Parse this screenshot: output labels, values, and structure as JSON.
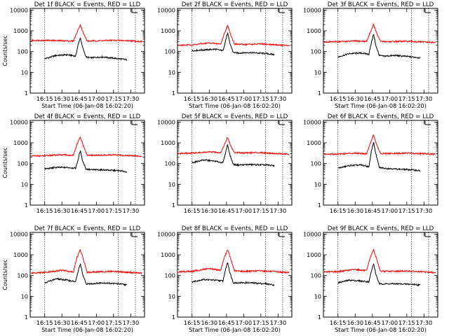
{
  "figure": {
    "colors": {
      "events": "#000000",
      "lld": "#ff0000",
      "axis": "#000000",
      "marker": "#000000"
    }
  },
  "chart_data": [
    {
      "type": "line",
      "panel": 1,
      "title": "Det 1f BLACK = Events, RED = LLD",
      "xlabel": "Start Time (06-Jan-08 16:02:20)",
      "ylabel": "Counts/sec",
      "yscale": "log",
      "ylim": [
        1,
        12000
      ],
      "xlim": [
        "16:02:20",
        "17:42"
      ],
      "x_tick_labels": [
        "16:15",
        "16:30",
        "16:45",
        "17:00",
        "17:15",
        "17:30"
      ],
      "y_tick_labels": [
        "1",
        "10",
        "100",
        "1000",
        "10000"
      ],
      "vertical_markers": [
        "16:15",
        "17:19",
        "17:34"
      ],
      "series": [
        {
          "name": "Events",
          "color": "#000000",
          "x": [
            "16:15",
            "16:25",
            "16:35",
            "16:42",
            "16:44",
            "16:46",
            "16:48",
            "16:51",
            "16:55",
            "17:05",
            "17:20",
            "17:27"
          ],
          "y": [
            45,
            65,
            70,
            60,
            200,
            480,
            160,
            55,
            50,
            55,
            45,
            40
          ]
        },
        {
          "name": "LLD",
          "color": "#ff0000",
          "x": [
            "16:03",
            "16:15",
            "16:30",
            "16:40",
            "16:43",
            "16:46",
            "16:49",
            "16:52",
            "17:00",
            "17:15",
            "17:30",
            "17:40"
          ],
          "y": [
            340,
            350,
            330,
            320,
            800,
            2000,
            700,
            320,
            330,
            350,
            330,
            300
          ]
        }
      ]
    },
    {
      "type": "line",
      "panel": 2,
      "title": "Det 2f BLACK = Events, RED = LLD",
      "xlabel": "Start Time (06-Jan-08 16:02:20)",
      "ylabel": "",
      "yscale": "log",
      "ylim": [
        1,
        12000
      ],
      "xlim": [
        "16:02:20",
        "17:42"
      ],
      "x_tick_labels": [
        "16:15",
        "16:30",
        "16:45",
        "17:00",
        "17:15",
        "17:30"
      ],
      "y_tick_labels": [
        "1",
        "10",
        "100",
        "1000",
        "10000"
      ],
      "vertical_markers": [
        "16:15",
        "17:19",
        "17:34"
      ],
      "series": [
        {
          "name": "Events",
          "color": "#000000",
          "x": [
            "16:15",
            "16:25",
            "16:35",
            "16:42",
            "16:44",
            "16:46",
            "16:48",
            "16:51",
            "16:55",
            "17:05",
            "17:20",
            "17:27"
          ],
          "y": [
            110,
            120,
            130,
            110,
            300,
            800,
            250,
            90,
            85,
            90,
            80,
            70
          ]
        },
        {
          "name": "LLD",
          "color": "#ff0000",
          "x": [
            "16:03",
            "16:15",
            "16:30",
            "16:40",
            "16:43",
            "16:46",
            "16:49",
            "16:52",
            "17:00",
            "17:15",
            "17:30",
            "17:40"
          ],
          "y": [
            200,
            210,
            260,
            230,
            700,
            1800,
            600,
            230,
            220,
            230,
            210,
            190
          ]
        }
      ]
    },
    {
      "type": "line",
      "panel": 3,
      "title": "Det 3f BLACK = Events, RED = LLD",
      "xlabel": "Start Time (06-Jan-08 16:02:20)",
      "ylabel": "",
      "yscale": "log",
      "ylim": [
        1,
        12000
      ],
      "xlim": [
        "16:02:20",
        "17:42"
      ],
      "x_tick_labels": [
        "16:15",
        "16:30",
        "16:45",
        "17:00",
        "17:15",
        "17:30"
      ],
      "y_tick_labels": [
        "1",
        "10",
        "100",
        "1000",
        "10000"
      ],
      "vertical_markers": [
        "16:15",
        "17:19",
        "17:34"
      ],
      "series": [
        {
          "name": "Events",
          "color": "#000000",
          "x": [
            "16:15",
            "16:25",
            "16:35",
            "16:42",
            "16:44",
            "16:46",
            "16:48",
            "16:51",
            "16:55",
            "17:05",
            "17:20",
            "17:27"
          ],
          "y": [
            55,
            80,
            85,
            75,
            250,
            700,
            200,
            65,
            60,
            65,
            55,
            50
          ]
        },
        {
          "name": "LLD",
          "color": "#ff0000",
          "x": [
            "16:03",
            "16:15",
            "16:30",
            "16:40",
            "16:43",
            "16:46",
            "16:49",
            "16:52",
            "17:00",
            "17:15",
            "17:30",
            "17:40"
          ],
          "y": [
            290,
            300,
            320,
            310,
            800,
            2000,
            700,
            310,
            300,
            310,
            290,
            270
          ]
        }
      ]
    },
    {
      "type": "line",
      "panel": 4,
      "title": "Det 4f BLACK = Events, RED = LLD",
      "xlabel": "",
      "ylabel": "Counts/sec",
      "yscale": "log",
      "ylim": [
        1,
        12000
      ],
      "xlim": [
        "16:02:20",
        "17:42"
      ],
      "x_tick_labels": [
        "16:15",
        "16:30",
        "16:45",
        "17:00",
        "17:15",
        "17:30"
      ],
      "y_tick_labels": [
        "1",
        "10",
        "100",
        "1000",
        "10000"
      ],
      "vertical_markers": [
        "16:15",
        "17:19",
        "17:34"
      ],
      "series": [
        {
          "name": "Events",
          "color": "#000000",
          "x": [
            "16:15",
            "16:25",
            "16:35",
            "16:42",
            "16:44",
            "16:46",
            "16:48",
            "16:51",
            "16:55",
            "17:05",
            "17:20",
            "17:27"
          ],
          "y": [
            55,
            65,
            65,
            60,
            150,
            420,
            140,
            55,
            50,
            50,
            45,
            40
          ]
        },
        {
          "name": "LLD",
          "color": "#ff0000",
          "x": [
            "16:03",
            "16:15",
            "16:30",
            "16:40",
            "16:43",
            "16:46",
            "16:49",
            "16:52",
            "17:00",
            "17:15",
            "17:30",
            "17:40"
          ],
          "y": [
            230,
            240,
            260,
            250,
            800,
            1900,
            650,
            250,
            250,
            260,
            240,
            220
          ]
        }
      ]
    },
    {
      "type": "line",
      "panel": 5,
      "title": "Det 5f BLACK = Events, RED = LLD",
      "xlabel": "",
      "ylabel": "",
      "yscale": "log",
      "ylim": [
        1,
        12000
      ],
      "xlim": [
        "16:02:20",
        "17:42"
      ],
      "x_tick_labels": [
        "16:15",
        "16:30",
        "16:45",
        "17:00",
        "17:15",
        "17:30"
      ],
      "y_tick_labels": [
        "1",
        "10",
        "100",
        "1000",
        "10000"
      ],
      "vertical_markers": [
        "16:15",
        "17:19",
        "17:34"
      ],
      "series": [
        {
          "name": "Events",
          "color": "#000000",
          "x": [
            "16:15",
            "16:25",
            "16:35",
            "16:42",
            "16:44",
            "16:46",
            "16:48",
            "16:51",
            "16:55",
            "17:05",
            "17:20",
            "17:27"
          ],
          "y": [
            110,
            150,
            130,
            110,
            300,
            850,
            260,
            90,
            85,
            90,
            85,
            80
          ]
        },
        {
          "name": "LLD",
          "color": "#ff0000",
          "x": [
            "16:03",
            "16:15",
            "16:30",
            "16:40",
            "16:43",
            "16:46",
            "16:49",
            "16:52",
            "17:00",
            "17:15",
            "17:30",
            "17:40"
          ],
          "y": [
            300,
            320,
            360,
            340,
            750,
            1800,
            650,
            340,
            330,
            340,
            300,
            280
          ]
        }
      ]
    },
    {
      "type": "line",
      "panel": 6,
      "title": "Det 6f BLACK = Events, RED = LLD",
      "xlabel": "",
      "ylabel": "",
      "yscale": "log",
      "ylim": [
        1,
        12000
      ],
      "xlim": [
        "16:02:20",
        "17:42"
      ],
      "x_tick_labels": [
        "16:15",
        "16:30",
        "16:45",
        "17:00",
        "17:15",
        "17:30"
      ],
      "y_tick_labels": [
        "1",
        "10",
        "100",
        "1000",
        "10000"
      ],
      "vertical_markers": [
        "16:15",
        "17:19",
        "17:34"
      ],
      "series": [
        {
          "name": "Events",
          "color": "#000000",
          "x": [
            "16:15",
            "16:25",
            "16:35",
            "16:42",
            "16:44",
            "16:46",
            "16:48",
            "16:51",
            "16:55",
            "17:05",
            "17:20",
            "17:27"
          ],
          "y": [
            60,
            80,
            85,
            70,
            350,
            1100,
            300,
            65,
            60,
            55,
            50,
            45
          ]
        },
        {
          "name": "LLD",
          "color": "#ff0000",
          "x": [
            "16:03",
            "16:15",
            "16:30",
            "16:40",
            "16:43",
            "16:46",
            "16:49",
            "16:52",
            "17:00",
            "17:15",
            "17:30",
            "17:40"
          ],
          "y": [
            280,
            290,
            320,
            300,
            900,
            2400,
            750,
            300,
            300,
            320,
            300,
            280
          ]
        }
      ]
    },
    {
      "type": "line",
      "panel": 7,
      "title": "Det 7f BLACK = Events, RED = LLD",
      "xlabel": "Start Time (06-Jan-08 16:02:20)",
      "ylabel": "Counts/sec",
      "yscale": "log",
      "ylim": [
        1,
        12000
      ],
      "xlim": [
        "16:02:20",
        "17:42"
      ],
      "x_tick_labels": [
        "16:15",
        "16:30",
        "16:45",
        "17:00",
        "17:15",
        "17:30"
      ],
      "y_tick_labels": [
        "1",
        "10",
        "100",
        "1000",
        "10000"
      ],
      "vertical_markers": [
        "16:15",
        "17:19",
        "17:34"
      ],
      "series": [
        {
          "name": "Events",
          "color": "#000000",
          "x": [
            "16:15",
            "16:25",
            "16:35",
            "16:42",
            "16:44",
            "16:46",
            "16:48",
            "16:51",
            "16:55",
            "17:05",
            "17:20",
            "17:27"
          ],
          "y": [
            45,
            70,
            60,
            50,
            150,
            380,
            120,
            40,
            40,
            45,
            40,
            35
          ]
        },
        {
          "name": "LLD",
          "color": "#ff0000",
          "x": [
            "16:03",
            "16:15",
            "16:30",
            "16:40",
            "16:43",
            "16:46",
            "16:49",
            "16:52",
            "17:00",
            "17:15",
            "17:30",
            "17:40"
          ],
          "y": [
            130,
            140,
            180,
            150,
            700,
            1800,
            550,
            140,
            150,
            160,
            140,
            130
          ]
        }
      ]
    },
    {
      "type": "line",
      "panel": 8,
      "title": "Det 8f BLACK = Events, RED = LLD",
      "xlabel": "Start Time (06-Jan-08 16:02:20)",
      "ylabel": "",
      "yscale": "log",
      "ylim": [
        1,
        12000
      ],
      "xlim": [
        "16:02:20",
        "17:42"
      ],
      "x_tick_labels": [
        "16:15",
        "16:30",
        "16:45",
        "17:00",
        "17:15",
        "17:30"
      ],
      "y_tick_labels": [
        "1",
        "10",
        "100",
        "1000",
        "10000"
      ],
      "vertical_markers": [
        "16:15",
        "17:19",
        "17:34"
      ],
      "series": [
        {
          "name": "Events",
          "color": "#000000",
          "x": [
            "16:15",
            "16:25",
            "16:35",
            "16:42",
            "16:44",
            "16:46",
            "16:48",
            "16:51",
            "16:55",
            "17:05",
            "17:20",
            "17:27"
          ],
          "y": [
            50,
            65,
            60,
            55,
            180,
            450,
            140,
            45,
            45,
            45,
            40,
            35
          ]
        },
        {
          "name": "LLD",
          "color": "#ff0000",
          "x": [
            "16:03",
            "16:15",
            "16:30",
            "16:40",
            "16:43",
            "16:46",
            "16:49",
            "16:52",
            "17:00",
            "17:15",
            "17:30",
            "17:40"
          ],
          "y": [
            150,
            160,
            220,
            180,
            700,
            1800,
            550,
            170,
            160,
            170,
            150,
            140
          ]
        }
      ]
    },
    {
      "type": "line",
      "panel": 9,
      "title": "Det 9f BLACK = Events, RED = LLD",
      "xlabel": "Start Time (06-Jan-08 16:02:20)",
      "ylabel": "",
      "yscale": "log",
      "ylim": [
        1,
        12000
      ],
      "xlim": [
        "16:02:20",
        "17:42"
      ],
      "x_tick_labels": [
        "16:15",
        "16:30",
        "16:45",
        "17:00",
        "17:15",
        "17:30"
      ],
      "y_tick_labels": [
        "1",
        "10",
        "100",
        "1000",
        "10000"
      ],
      "vertical_markers": [
        "16:15",
        "17:19",
        "17:34"
      ],
      "series": [
        {
          "name": "Events",
          "color": "#000000",
          "x": [
            "16:15",
            "16:25",
            "16:35",
            "16:42",
            "16:44",
            "16:46",
            "16:48",
            "16:51",
            "16:55",
            "17:05",
            "17:20",
            "17:27"
          ],
          "y": [
            45,
            60,
            55,
            50,
            150,
            380,
            120,
            40,
            40,
            40,
            38,
            35
          ]
        },
        {
          "name": "LLD",
          "color": "#ff0000",
          "x": [
            "16:03",
            "16:15",
            "16:30",
            "16:40",
            "16:43",
            "16:46",
            "16:49",
            "16:52",
            "17:00",
            "17:15",
            "17:30",
            "17:40"
          ],
          "y": [
            150,
            155,
            200,
            170,
            700,
            1800,
            550,
            160,
            160,
            165,
            150,
            140
          ]
        }
      ]
    }
  ]
}
